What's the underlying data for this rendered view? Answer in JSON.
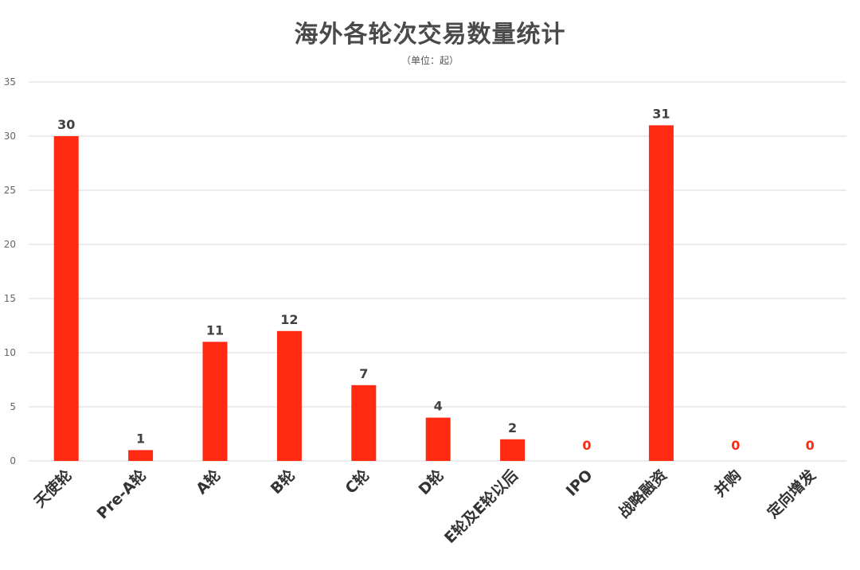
{
  "chart_data": {
    "type": "bar",
    "title": "海外各轮次交易数量统计",
    "subtitle": "（单位：起）",
    "categories": [
      "天使轮",
      "Pre-A轮",
      "A轮",
      "B轮",
      "C轮",
      "D轮",
      "E轮及E轮以后",
      "IPO",
      "战略融资",
      "并购",
      "定向增发"
    ],
    "values": [
      30,
      1,
      11,
      12,
      7,
      4,
      2,
      0,
      31,
      0,
      0
    ],
    "ylim": [
      0,
      35
    ],
    "yticks": [
      0,
      5,
      10,
      15,
      20,
      25,
      30,
      35
    ],
    "grid": true,
    "legend": "none",
    "colors": {
      "bar": "#ff2a11",
      "label": "#404040",
      "zero_label": "#ff2a11",
      "grid": "#d9d9d9"
    }
  }
}
